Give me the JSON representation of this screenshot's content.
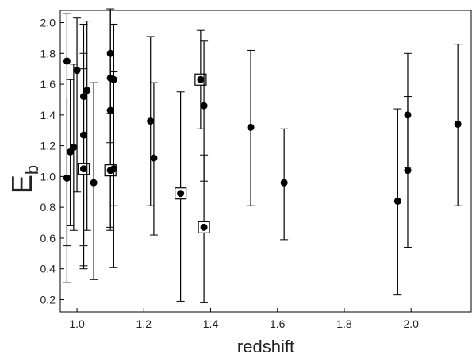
{
  "chart_data": {
    "type": "scatter",
    "title": "",
    "xlabel": "redshift",
    "ylabel": "E",
    "ylabel_subscript": "b",
    "xlim": [
      0.95,
      2.18
    ],
    "ylim": [
      0.12,
      2.08
    ],
    "xticks": [
      "1.0",
      "1.2",
      "1.4",
      "1.6",
      "1.8",
      "2.0"
    ],
    "yticks": [
      "0.2",
      "0.4",
      "0.6",
      "0.8",
      "1.0",
      "1.2",
      "1.4",
      "1.6",
      "1.8",
      "2.0"
    ],
    "grid": false,
    "colors": {
      "marker": "#000000",
      "errorbar": "#000000",
      "axis": "#000000"
    },
    "series": [
      {
        "points": [
          {
            "x": 0.97,
            "y": 1.75,
            "ylo": 0.31,
            "yhi": 2.06,
            "boxed": false
          },
          {
            "x": 0.97,
            "y": 0.99,
            "ylo": 0.55,
            "yhi": 1.51,
            "boxed": false
          },
          {
            "x": 0.98,
            "y": 1.16,
            "ylo": 0.68,
            "yhi": 1.63,
            "boxed": false
          },
          {
            "x": 0.99,
            "y": 1.19,
            "ylo": 0.65,
            "yhi": 1.73,
            "boxed": false
          },
          {
            "x": 1.0,
            "y": 1.69,
            "ylo": 0.9,
            "yhi": 2.03,
            "boxed": false
          },
          {
            "x": 1.02,
            "y": 1.52,
            "ylo": 0.4,
            "yhi": 1.99,
            "boxed": false
          },
          {
            "x": 1.02,
            "y": 1.27,
            "ylo": 0.55,
            "yhi": 1.8,
            "boxed": false
          },
          {
            "x": 1.02,
            "y": 1.05,
            "ylo": 0.42,
            "yhi": 1.7,
            "boxed": true
          },
          {
            "x": 1.03,
            "y": 1.56,
            "ylo": 0.65,
            "yhi": 2.01,
            "boxed": false
          },
          {
            "x": 1.05,
            "y": 0.96,
            "ylo": 0.33,
            "yhi": 1.61,
            "boxed": false
          },
          {
            "x": 1.1,
            "y": 1.8,
            "ylo": 1.43,
            "yhi": 2.09,
            "boxed": false
          },
          {
            "x": 1.1,
            "y": 1.64,
            "ylo": 1.22,
            "yhi": 2.08,
            "boxed": false
          },
          {
            "x": 1.1,
            "y": 1.43,
            "ylo": 0.67,
            "yhi": 1.81,
            "boxed": false
          },
          {
            "x": 1.1,
            "y": 1.04,
            "ylo": 0.65,
            "yhi": 1.41,
            "boxed": true
          },
          {
            "x": 1.11,
            "y": 1.63,
            "ylo": 0.81,
            "yhi": 1.99,
            "boxed": false
          },
          {
            "x": 1.11,
            "y": 1.05,
            "ylo": 0.41,
            "yhi": 1.68,
            "boxed": false
          },
          {
            "x": 1.22,
            "y": 1.36,
            "ylo": 0.81,
            "yhi": 1.91,
            "boxed": false
          },
          {
            "x": 1.23,
            "y": 1.12,
            "ylo": 0.62,
            "yhi": 1.61,
            "boxed": false
          },
          {
            "x": 1.31,
            "y": 0.89,
            "ylo": 0.19,
            "yhi": 1.55,
            "boxed": true
          },
          {
            "x": 1.37,
            "y": 1.63,
            "ylo": 1.31,
            "yhi": 1.95,
            "boxed": true
          },
          {
            "x": 1.38,
            "y": 1.46,
            "ylo": 0.97,
            "yhi": 1.88,
            "boxed": false
          },
          {
            "x": 1.38,
            "y": 0.67,
            "ylo": 0.18,
            "yhi": 1.14,
            "boxed": true
          },
          {
            "x": 1.52,
            "y": 1.32,
            "ylo": 0.81,
            "yhi": 1.82,
            "boxed": false
          },
          {
            "x": 1.62,
            "y": 0.96,
            "ylo": 0.59,
            "yhi": 1.31,
            "boxed": false
          },
          {
            "x": 1.96,
            "y": 0.84,
            "ylo": 0.23,
            "yhi": 1.44,
            "boxed": false
          },
          {
            "x": 1.99,
            "y": 1.4,
            "ylo": 1.06,
            "yhi": 1.52,
            "boxed": false
          },
          {
            "x": 1.99,
            "y": 1.04,
            "ylo": 0.54,
            "yhi": 1.8,
            "boxed": false
          },
          {
            "x": 2.14,
            "y": 1.34,
            "ylo": 0.81,
            "yhi": 1.86,
            "boxed": false
          }
        ]
      }
    ]
  }
}
